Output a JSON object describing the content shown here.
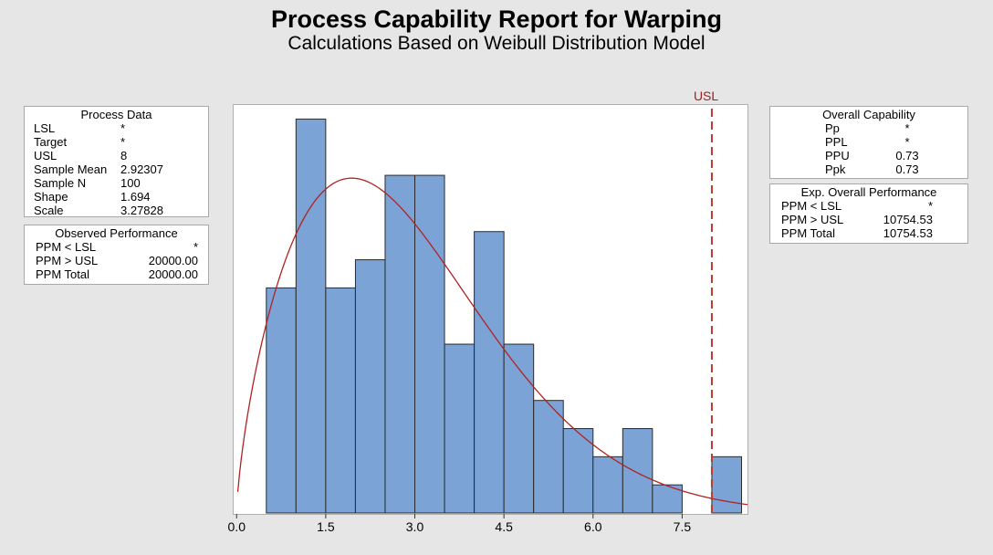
{
  "title": "Process Capability Report for Warping",
  "subtitle": "Calculations Based on Weibull Distribution Model",
  "process_data": {
    "header": "Process Data",
    "rows": [
      {
        "label": "LSL",
        "value": "*"
      },
      {
        "label": "Target",
        "value": "*"
      },
      {
        "label": "USL",
        "value": "8"
      },
      {
        "label": "Sample Mean",
        "value": "2.92307"
      },
      {
        "label": "Sample N",
        "value": "100"
      },
      {
        "label": "Shape",
        "value": "1.694"
      },
      {
        "label": "Scale",
        "value": "3.27828"
      }
    ]
  },
  "observed_performance": {
    "header": "Observed Performance",
    "rows": [
      {
        "label": "PPM < LSL",
        "value": "*"
      },
      {
        "label": "PPM > USL",
        "value": "20000.00"
      },
      {
        "label": "PPM Total",
        "value": "20000.00"
      }
    ]
  },
  "overall_capability": {
    "header": "Overall Capability",
    "rows": [
      {
        "label": "Pp",
        "value": "*"
      },
      {
        "label": "PPL",
        "value": "*"
      },
      {
        "label": "PPU",
        "value": "0.73"
      },
      {
        "label": "Ppk",
        "value": "0.73"
      }
    ]
  },
  "exp_overall_performance": {
    "header": "Exp. Overall Performance",
    "rows": [
      {
        "label": "PPM < LSL",
        "value": "*"
      },
      {
        "label": "PPM > USL",
        "value": "10754.53"
      },
      {
        "label": "PPM Total",
        "value": "10754.53"
      }
    ]
  },
  "colors": {
    "bar_fill": "#7ba3d6",
    "bar_stroke": "#2b2b2b",
    "curve": "#b22222",
    "usl_line": "#c0392b"
  },
  "chart_data": {
    "type": "bar",
    "title": "Process Capability Report for Warping",
    "subtitle": "Calculations Based on Weibull Distribution Model",
    "bin_width": 0.5,
    "bin_starts": [
      0.5,
      1.0,
      1.5,
      2.0,
      2.5,
      3.0,
      3.5,
      4.0,
      4.5,
      5.0,
      5.5,
      6.0,
      6.5,
      7.0,
      7.5,
      8.0
    ],
    "counts": [
      8,
      14,
      8,
      9,
      12,
      12,
      6,
      10,
      6,
      4,
      3,
      2,
      3,
      1,
      0,
      2
    ],
    "xlim": [
      -0.05,
      8.6
    ],
    "ylim": [
      0,
      14.5
    ],
    "xticks": [
      0.0,
      1.5,
      3.0,
      4.5,
      6.0,
      7.5
    ],
    "xtick_labels": [
      "0.0",
      "1.5",
      "3.0",
      "4.5",
      "6.0",
      "7.5"
    ],
    "weibull_fit": {
      "shape": 1.694,
      "scale": 3.27828,
      "n": 100
    },
    "usl": {
      "value": 8,
      "label": "USL"
    }
  }
}
